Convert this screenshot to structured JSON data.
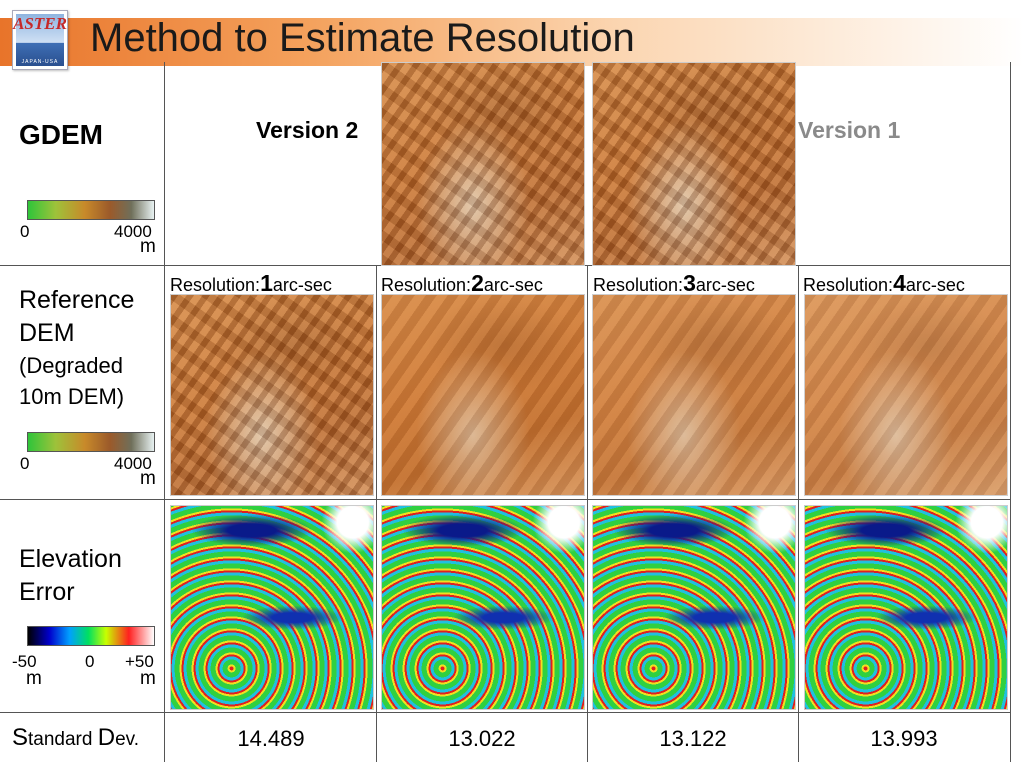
{
  "header": {
    "title": "Method to Estimate Resolution",
    "logo": {
      "text": "ASTER",
      "subtext": "JAPAN-USA"
    }
  },
  "gdem_row": {
    "label": "GDEM",
    "version2_label": "Version 2",
    "version1_label": "Version 1",
    "scale": {
      "min": "0",
      "max": "4000",
      "unit": "m"
    }
  },
  "reference_row": {
    "label_line1": "Reference",
    "label_line2": "DEM",
    "label_line3": "(Degraded",
    "label_line4": "10m DEM)",
    "scale": {
      "min": "0",
      "max": "4000",
      "unit": "m"
    },
    "columns": [
      {
        "prefix": "Resolution:",
        "number": "1",
        "suffix": "arc-sec"
      },
      {
        "prefix": "Resolution:",
        "number": "2",
        "suffix": "arc-sec"
      },
      {
        "prefix": "Resolution:",
        "number": "3",
        "suffix": "arc-sec"
      },
      {
        "prefix": "Resolution:",
        "number": "4",
        "suffix": "arc-sec"
      }
    ]
  },
  "error_row": {
    "label_line1": "Elevation",
    "label_line2": "Error",
    "scale": {
      "min": "-50",
      "mid": "0",
      "max": "+50",
      "unit_left": "m",
      "unit_right": "m"
    }
  },
  "std_row": {
    "label_s": "S",
    "label_tandard": "tandard ",
    "label_d": "D",
    "label_ev": "ev.",
    "values": [
      "14.489",
      "13.022",
      "13.122",
      "13.993"
    ]
  },
  "colors": {
    "title_band_start": "#e8742a",
    "terrain": "#c66f2c",
    "version1_text": "#8a8a8a"
  }
}
